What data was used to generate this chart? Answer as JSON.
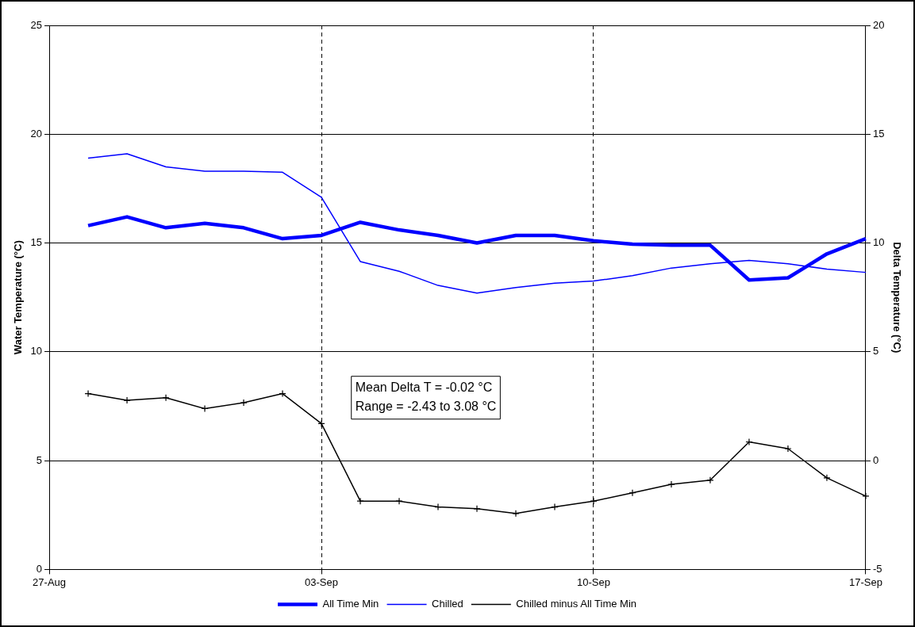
{
  "chart_data": {
    "type": "line",
    "x": [
      "--08-28",
      "--08-29",
      "--08-30",
      "--08-31",
      "--09-01",
      "--09-02",
      "--09-03",
      "--09-04",
      "--09-05",
      "--09-06",
      "--09-07",
      "--09-08",
      "--09-09",
      "--09-10",
      "--09-11",
      "--09-12",
      "--09-13",
      "--09-14",
      "--09-15",
      "--09-16",
      "--09-17"
    ],
    "series": [
      {
        "name": "All Time Min",
        "color": "#0000ff",
        "values": [
          15.8,
          16.2,
          15.7,
          15.9,
          15.7,
          15.2,
          15.35,
          15.95,
          15.6,
          15.35,
          15.0,
          15.35,
          15.35,
          15.1,
          14.95,
          14.9,
          14.9,
          13.3,
          13.4,
          14.5,
          15.2
        ]
      },
      {
        "name": "Chilled",
        "color": "#0000ff",
        "values": [
          18.9,
          19.1,
          18.5,
          18.3,
          18.3,
          18.25,
          17.1,
          14.15,
          13.7,
          13.05,
          12.7,
          12.95,
          13.15,
          13.25,
          13.5,
          13.85,
          14.05,
          14.2,
          14.05,
          13.8,
          13.65
        ]
      },
      {
        "name": "Chilled minus All Time Min",
        "color": "#000000",
        "axis": "y2",
        "marker": "cross",
        "values": [
          3.08,
          2.77,
          2.89,
          2.39,
          2.66,
          3.08,
          1.7,
          -1.86,
          -1.86,
          -2.13,
          -2.21,
          -2.43,
          -2.13,
          -1.86,
          -1.48,
          -1.09,
          -0.9,
          0.86,
          0.55,
          -0.79,
          -1.63
        ]
      }
    ],
    "xlim": [
      "--08-27",
      "--09-17"
    ],
    "xticks": [
      {
        "value": "--08-27",
        "label": "27-Aug"
      },
      {
        "value": "--09-03",
        "label": "03-Sep"
      },
      {
        "value": "--09-10",
        "label": "10-Sep"
      },
      {
        "value": "--09-17",
        "label": "17-Sep"
      }
    ],
    "ylim": [
      0,
      25
    ],
    "yticks": [
      0,
      5,
      10,
      15,
      20,
      25
    ],
    "y2lim": [
      -5,
      20
    ],
    "y2ticks": [
      -5,
      0,
      5,
      10,
      15,
      20
    ],
    "ylabel": "Water Temperature (°C)",
    "y2label": "Delta Temperature (°C)",
    "annotations": [
      "Mean Delta T = -0.02 °C",
      "Range = -2.43 to 3.08 °C"
    ],
    "grid": true,
    "legend": "bottom",
    "marker": "none",
    "line_style": "solid"
  }
}
